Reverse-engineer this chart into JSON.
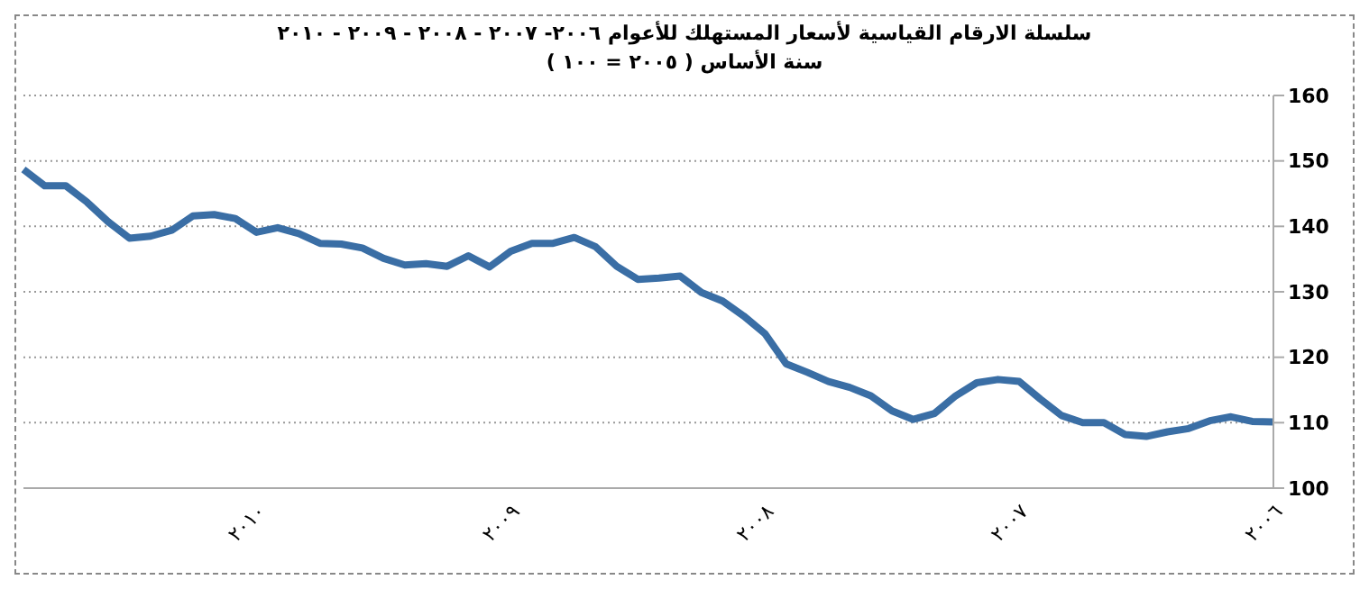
{
  "chart_data": {
    "type": "line",
    "title": "سلسلة الارقام القياسية لأسعار المستهلك للأعوام ٢٠٠٦- ٢٠٠٧ - ٢٠٠٨ - ٢٠٠٩ - ٢٠١٠",
    "subtitle": "سنة الأساس ( ٢٠٠٥ = ١٠٠ )",
    "categories": [
      null,
      null,
      null,
      null,
      null,
      null,
      null,
      null,
      null,
      null,
      null,
      "٢٠١٠",
      null,
      null,
      null,
      null,
      null,
      null,
      null,
      null,
      null,
      null,
      null,
      "٢٠٠٩",
      null,
      null,
      null,
      null,
      null,
      null,
      null,
      null,
      null,
      null,
      null,
      "٢٠٠٨",
      null,
      null,
      null,
      null,
      null,
      null,
      null,
      null,
      null,
      null,
      null,
      "٢٠٠٧",
      null,
      null,
      null,
      null,
      null,
      null,
      null,
      null,
      null,
      null,
      null,
      "٢٠٠٦"
    ],
    "series": [
      {
        "color": "#3a6ea5",
        "values": [
          148.7,
          146.2,
          146.2,
          143.7,
          140.7,
          138.2,
          138.5,
          139.4,
          141.6,
          141.8,
          141.2,
          139.1,
          139.8,
          138.9,
          137.4,
          137.3,
          136.7,
          135.1,
          134.1,
          134.3,
          133.9,
          135.5,
          133.8,
          136.2,
          137.4,
          137.4,
          138.3,
          136.9,
          133.9,
          131.9,
          132.1,
          132.4,
          129.9,
          128.6,
          126.3,
          123.6,
          119.0,
          117.7,
          116.3,
          115.4,
          114.1,
          111.8,
          110.5,
          111.4,
          114.1,
          116.1,
          116.6,
          116.3,
          113.6,
          111.1,
          110.0,
          110.0,
          108.2,
          107.9,
          108.6,
          109.1,
          110.3,
          110.9,
          110.2,
          110.1
        ]
      }
    ],
    "ylim": [
      100,
      160
    ],
    "yticks": [
      100,
      110,
      120,
      130,
      140,
      150,
      160
    ],
    "grid": "y",
    "legend": false,
    "marker": "none",
    "line_style": "solid"
  }
}
